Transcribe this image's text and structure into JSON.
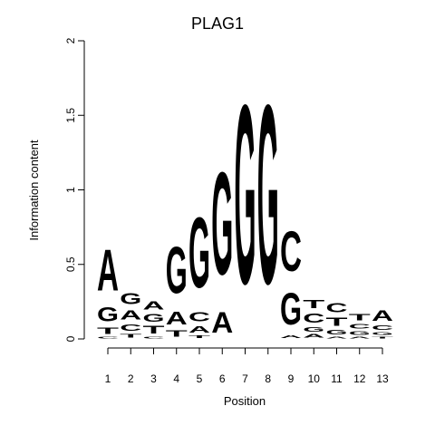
{
  "chart_data": {
    "type": "sequence-logo",
    "title": "PLAG1",
    "xlabel": "Position",
    "ylabel": "Information content",
    "ylim": [
      0,
      2
    ],
    "yticks": [
      0,
      0.5,
      1,
      1.5,
      2
    ],
    "ytick_labels": [
      "0",
      "0.5",
      "1",
      "1.5",
      "2"
    ],
    "positions": [
      "1",
      "2",
      "3",
      "4",
      "5",
      "6",
      "7",
      "8",
      "9",
      "10",
      "11",
      "12",
      "13"
    ],
    "colors": {
      "A": "#00cc00",
      "C": "#0000cc",
      "G": "#ffa500",
      "T": "#ff0000"
    },
    "stacks": [
      [
        {
          "base": "C",
          "height": 0.02
        },
        {
          "base": "T",
          "height": 0.07
        },
        {
          "base": "G",
          "height": 0.15
        },
        {
          "base": "A",
          "height": 0.44
        }
      ],
      [
        {
          "base": "T",
          "height": 0.04
        },
        {
          "base": "C",
          "height": 0.07
        },
        {
          "base": "A",
          "height": 0.1
        },
        {
          "base": "G",
          "height": 0.12
        }
      ],
      [
        {
          "base": "C",
          "height": 0.02
        },
        {
          "base": "T",
          "height": 0.08
        },
        {
          "base": "G",
          "height": 0.08
        },
        {
          "base": "A",
          "height": 0.09
        }
      ],
      [
        {
          "base": "T",
          "height": 0.07
        },
        {
          "base": "A",
          "height": 0.14
        },
        {
          "base": "G",
          "height": 0.5
        }
      ],
      [
        {
          "base": "T",
          "height": 0.03
        },
        {
          "base": "A",
          "height": 0.07
        },
        {
          "base": "C",
          "height": 0.1
        },
        {
          "base": "G",
          "height": 0.75
        }
      ],
      [
        {
          "base": "A",
          "height": 0.22
        },
        {
          "base": "G",
          "height": 1.1
        }
      ],
      [
        {
          "base": "G",
          "height": 1.92
        }
      ],
      [
        {
          "base": "G",
          "height": 1.92
        }
      ],
      [
        {
          "base": "A",
          "height": 0.03
        },
        {
          "base": "G",
          "height": 0.34
        },
        {
          "base": "C",
          "height": 0.43
        }
      ],
      [
        {
          "base": "A",
          "height": 0.04
        },
        {
          "base": "G",
          "height": 0.05
        },
        {
          "base": "C",
          "height": 0.1
        },
        {
          "base": "T",
          "height": 0.09
        }
      ],
      [
        {
          "base": "A",
          "height": 0.02
        },
        {
          "base": "G",
          "height": 0.05
        },
        {
          "base": "T",
          "height": 0.09
        },
        {
          "base": "C",
          "height": 0.1
        }
      ],
      [
        {
          "base": "A",
          "height": 0.02
        },
        {
          "base": "G",
          "height": 0.04
        },
        {
          "base": "C",
          "height": 0.05
        },
        {
          "base": "T",
          "height": 0.07
        }
      ],
      [
        {
          "base": "T",
          "height": 0.02
        },
        {
          "base": "G",
          "height": 0.03
        },
        {
          "base": "C",
          "height": 0.05
        },
        {
          "base": "A",
          "height": 0.11
        }
      ]
    ]
  }
}
